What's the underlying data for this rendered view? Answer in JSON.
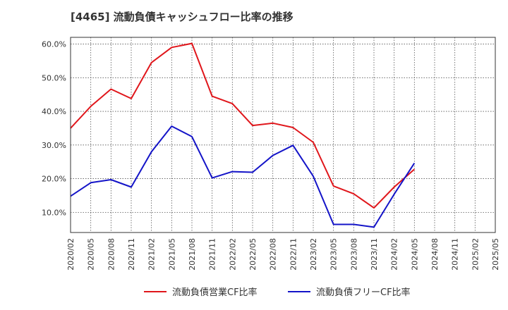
{
  "chart_data": {
    "type": "line",
    "title": "[4465]  流動負債キャッシュフロー比率の推移",
    "x": [
      "2020/02",
      "2020/05",
      "2020/08",
      "2020/11",
      "2021/02",
      "2021/05",
      "2021/08",
      "2021/11",
      "2022/02",
      "2022/05",
      "2022/08",
      "2022/11",
      "2023/02",
      "2023/05",
      "2023/08",
      "2023/11",
      "2024/02",
      "2024/05",
      "2024/08",
      "2024/11",
      "2025/02",
      "2025/05"
    ],
    "yticks": [
      "10.0%",
      "20.0%",
      "30.0%",
      "40.0%",
      "50.0%",
      "60.0%"
    ],
    "ylim": [
      4,
      62
    ],
    "grid": true,
    "legend_position": "bottom",
    "series": [
      {
        "name": "流動負債営業CF比率",
        "color": "#e0161b",
        "values": [
          35.0,
          41.5,
          46.6,
          43.8,
          54.5,
          59.0,
          60.2,
          44.5,
          42.3,
          35.8,
          36.5,
          35.2,
          30.8,
          17.8,
          15.5,
          11.3,
          17.5,
          22.8,
          null,
          null,
          null,
          null
        ]
      },
      {
        "name": "流動負債フリーCF比率",
        "color": "#1414c8",
        "values": [
          14.8,
          18.8,
          19.7,
          17.5,
          28.0,
          35.6,
          32.5,
          20.2,
          22.1,
          21.9,
          26.9,
          29.9,
          20.7,
          6.4,
          6.4,
          5.6,
          15.4,
          24.6,
          null,
          null,
          null,
          null
        ]
      }
    ]
  }
}
